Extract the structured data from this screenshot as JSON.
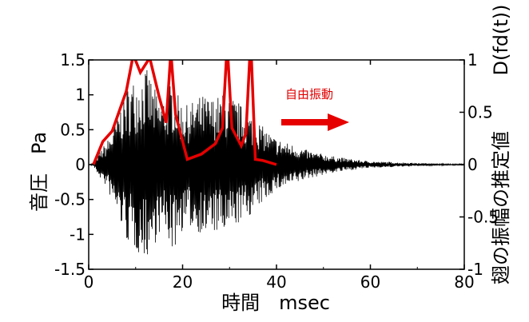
{
  "chart_data": {
    "type": "line",
    "title": "",
    "xlabel": "時間　msec",
    "ylabel": "音圧　Pa",
    "y2label": "翅の振幅の推定値",
    "y2unit_label": "D(fd(t))",
    "xlim": [
      0,
      80
    ],
    "ylim": [
      -1.5,
      1.5
    ],
    "y2lim": [
      -1,
      1
    ],
    "x_ticks": [
      "0",
      "20",
      "40",
      "60",
      "80"
    ],
    "y_ticks": [
      "-1.5",
      "-1",
      "-0.5",
      "0",
      "0.5",
      "1",
      "1.5"
    ],
    "y2_ticks": [
      "-1",
      "-0.5",
      "0",
      "0.5",
      "1"
    ],
    "grid": false,
    "annotation": "自由振動",
    "colors": {
      "waveform": "#000000",
      "envelope": "#e60000",
      "arrow": "#e60000"
    },
    "series": [
      {
        "axis": "left",
        "style": "waveform-envelope",
        "x": [
          0,
          1,
          2,
          3,
          4,
          5,
          6,
          7,
          8,
          9,
          10,
          11,
          12,
          13,
          14,
          15,
          16,
          17,
          18,
          19,
          20,
          21,
          22,
          23,
          24,
          25,
          26,
          27,
          28,
          29,
          30,
          31,
          32,
          33,
          34,
          35,
          36,
          37,
          38,
          39,
          40,
          42,
          44,
          46,
          48,
          50,
          52,
          54,
          56,
          58,
          60,
          62,
          64,
          66,
          68,
          70,
          72,
          74,
          76,
          78,
          80
        ],
        "y_upper": [
          0,
          0.02,
          0.15,
          0.25,
          0.35,
          0.5,
          0.7,
          0.9,
          1.1,
          1.2,
          1.25,
          1.3,
          1.4,
          1.3,
          1.1,
          0.95,
          1.0,
          1.1,
          1.25,
          1.0,
          0.9,
          0.85,
          0.9,
          0.95,
          1.0,
          1.0,
          0.95,
          1.0,
          0.98,
          1.05,
          1.0,
          0.95,
          0.9,
          0.8,
          0.75,
          0.7,
          0.65,
          0.55,
          0.5,
          0.42,
          0.38,
          0.32,
          0.28,
          0.22,
          0.18,
          0.15,
          0.12,
          0.1,
          0.08,
          0.06,
          0.05,
          0.04,
          0.04,
          0.03,
          0.03,
          0.02,
          0.02,
          0.015,
          0.01,
          0.01,
          0.01
        ],
        "y_lower": [
          0,
          -0.02,
          -0.15,
          -0.25,
          -0.35,
          -0.55,
          -0.7,
          -0.9,
          -1.1,
          -1.2,
          -1.25,
          -1.3,
          -1.35,
          -1.3,
          -1.15,
          -1.0,
          -1.0,
          -1.1,
          -1.3,
          -1.05,
          -0.95,
          -0.9,
          -0.92,
          -0.95,
          -1.0,
          -1.05,
          -0.95,
          -1.0,
          -1.0,
          -1.05,
          -1.0,
          -0.9,
          -0.85,
          -0.8,
          -0.75,
          -0.7,
          -0.65,
          -0.55,
          -0.5,
          -0.42,
          -0.38,
          -0.32,
          -0.28,
          -0.22,
          -0.18,
          -0.15,
          -0.12,
          -0.1,
          -0.08,
          -0.06,
          -0.05,
          -0.04,
          -0.04,
          -0.03,
          -0.03,
          -0.02,
          -0.02,
          -0.015,
          -0.01,
          -0.01,
          -0.01
        ]
      },
      {
        "axis": "right",
        "style": "line",
        "x": [
          1,
          3,
          5,
          8,
          9.5,
          11,
          13,
          15,
          16.5,
          17.5,
          18.5,
          21,
          24,
          27,
          28.5,
          29.5,
          30.5,
          32.5,
          33.5,
          34.5,
          35.5,
          37,
          40
        ],
        "y": [
          0.0,
          0.22,
          0.32,
          0.7,
          1.05,
          0.88,
          1.02,
          0.65,
          0.4,
          1.08,
          0.48,
          0.05,
          0.1,
          0.2,
          0.35,
          1.15,
          0.35,
          0.18,
          0.3,
          1.2,
          0.05,
          0.04,
          0.0
        ]
      }
    ]
  }
}
